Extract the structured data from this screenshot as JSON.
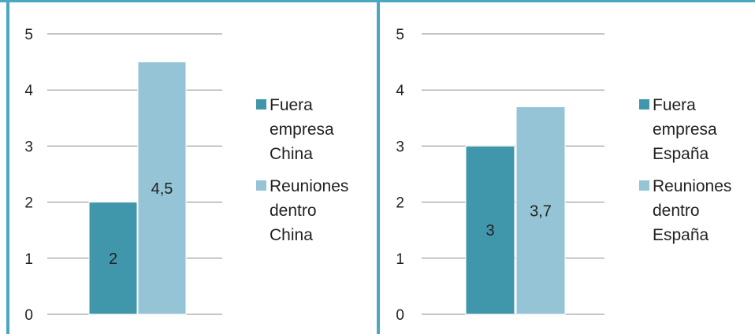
{
  "colors": {
    "series1": "#4097AC",
    "series2": "#94C4D6",
    "border": "#4AA8C2",
    "grid": "#8C8C8C"
  },
  "chart_data": [
    {
      "type": "bar",
      "ylim": [
        0,
        5
      ],
      "yticks": [
        "0",
        "1",
        "2",
        "3",
        "4",
        "5"
      ],
      "grid": true,
      "legend_position": "right",
      "series": [
        {
          "name": "Fuera empresa China",
          "value": 2,
          "label": "2"
        },
        {
          "name": "Reuniones dentro China",
          "value": 4.5,
          "label": "4,5"
        }
      ]
    },
    {
      "type": "bar",
      "ylim": [
        0,
        5
      ],
      "yticks": [
        "0",
        "1",
        "2",
        "3",
        "4",
        "5"
      ],
      "grid": true,
      "legend_position": "right",
      "series": [
        {
          "name": "Fuera empresa España",
          "value": 3,
          "label": "3"
        },
        {
          "name": "Reuniones dentro España",
          "value": 3.7,
          "label": "3,7"
        }
      ]
    }
  ],
  "legends": [
    [
      "Fuera\nempresa\nChina",
      "Reuniones\ndentro\nChina"
    ],
    [
      "Fuera\nempresa\nEspaña",
      "Reuniones\ndentro\nEspaña"
    ]
  ]
}
